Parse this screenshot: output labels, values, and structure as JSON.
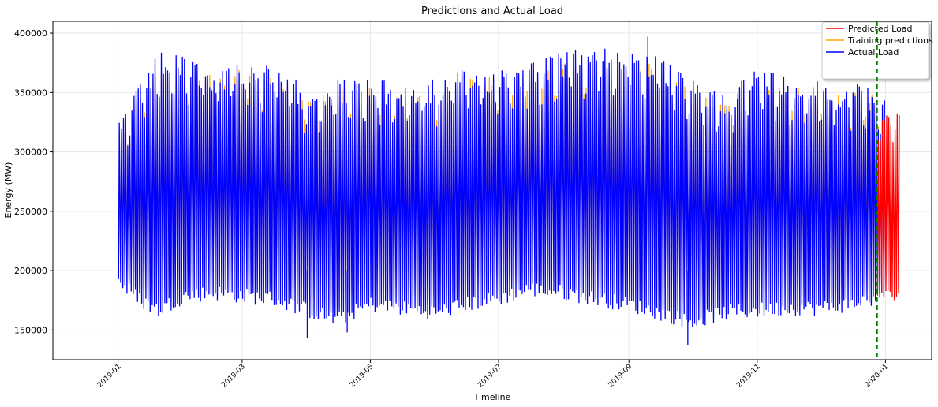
{
  "chart_data": {
    "type": "line",
    "title": "Predictions and Actual Load",
    "xlabel": "Timeline",
    "ylabel": "Energy (MW)",
    "xlim": [
      "2018-12-01",
      "2020-01-23"
    ],
    "ylim": [
      125000,
      410000
    ],
    "x_ticks": [
      "2019-01",
      "2019-03",
      "2019-05",
      "2019-07",
      "2019-09",
      "2019-11",
      "2020-01"
    ],
    "y_ticks": [
      150000,
      200000,
      250000,
      300000,
      350000,
      400000
    ],
    "grid": true,
    "legend_position": "top-right",
    "split_date": "2019-12-28",
    "split_line_color": "#008000",
    "series": [
      {
        "name": "Predicted Load",
        "color": "#ff0000",
        "x_start": "2019-12-28",
        "x_end": "2020-01-07",
        "y_min": 175000,
        "y_max": 345000,
        "pattern": "daily oscillation"
      },
      {
        "name": "Training predictions",
        "color": "#ffa500",
        "x_start": "2019-01-01",
        "x_end": "2019-12-28",
        "y_min": 168000,
        "y_max": 355000,
        "pattern": "daily oscillation"
      },
      {
        "name": "Actual Load",
        "color": "#0000ff",
        "x_start": "2019-01-01",
        "x_end": "2019-12-31",
        "y_min": 137000,
        "y_max": 397000,
        "pattern": "daily oscillation"
      }
    ],
    "envelope": {
      "dates": [
        "2019-01-01",
        "2019-01-10",
        "2019-01-20",
        "2019-02-01",
        "2019-02-15",
        "2019-03-01",
        "2019-03-15",
        "2019-04-01",
        "2019-04-15",
        "2019-05-01",
        "2019-05-15",
        "2019-06-01",
        "2019-06-15",
        "2019-07-01",
        "2019-07-15",
        "2019-08-01",
        "2019-08-15",
        "2019-09-01",
        "2019-09-15",
        "2019-10-01",
        "2019-10-15",
        "2019-11-01",
        "2019-11-15",
        "2019-12-01",
        "2019-12-15",
        "2019-12-31"
      ],
      "peak": [
        330000,
        355000,
        385000,
        380000,
        372000,
        378000,
        372000,
        355000,
        362000,
        362000,
        358000,
        362000,
        370000,
        372000,
        378000,
        385000,
        388000,
        390000,
        380000,
        360000,
        352000,
        372000,
        365000,
        362000,
        358000,
        355000
      ],
      "trough": [
        185000,
        170000,
        160000,
        172000,
        175000,
        172000,
        170000,
        160000,
        152000,
        165000,
        162000,
        158000,
        165000,
        170000,
        178000,
        175000,
        170000,
        165000,
        158000,
        150000,
        158000,
        160000,
        162000,
        162000,
        165000,
        172000
      ]
    },
    "notable_points": [
      {
        "x": "2019-04-01",
        "y": 143000
      },
      {
        "x": "2019-04-20",
        "y": 148000
      },
      {
        "x": "2019-09-10",
        "y": 397000
      },
      {
        "x": "2019-09-29",
        "y": 137000
      }
    ]
  }
}
